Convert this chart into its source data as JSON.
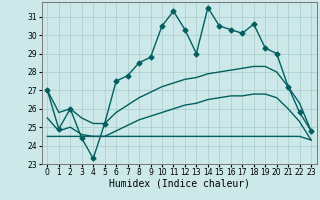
{
  "title": "",
  "xlabel": "Humidex (Indice chaleur)",
  "xlim": [
    -0.5,
    23.5
  ],
  "ylim": [
    23,
    31.8
  ],
  "yticks": [
    23,
    24,
    25,
    26,
    27,
    28,
    29,
    30,
    31
  ],
  "xticks": [
    0,
    1,
    2,
    3,
    4,
    5,
    6,
    7,
    8,
    9,
    10,
    11,
    12,
    13,
    14,
    15,
    16,
    17,
    18,
    19,
    20,
    21,
    22,
    23
  ],
  "bg_color": "#cce8e8",
  "grid_color": "#aacccc",
  "line_color": "#006060",
  "line1": [
    27.0,
    24.9,
    26.0,
    24.4,
    23.3,
    25.2,
    27.5,
    27.8,
    28.5,
    28.8,
    30.5,
    31.3,
    30.3,
    29.0,
    31.5,
    30.5,
    30.3,
    30.1,
    30.6,
    29.3,
    29.0,
    27.2,
    25.8,
    24.8
  ],
  "line2": [
    24.5,
    24.5,
    24.5,
    24.5,
    24.5,
    24.5,
    24.5,
    24.5,
    24.5,
    24.5,
    24.5,
    24.5,
    24.5,
    24.5,
    24.5,
    24.5,
    24.5,
    24.5,
    24.5,
    24.5,
    24.5,
    24.5,
    24.5,
    24.3
  ],
  "line3": [
    27.0,
    25.8,
    26.0,
    25.5,
    25.2,
    25.2,
    25.8,
    26.2,
    26.6,
    26.9,
    27.2,
    27.4,
    27.6,
    27.7,
    27.9,
    28.0,
    28.1,
    28.2,
    28.3,
    28.3,
    28.0,
    27.2,
    26.3,
    24.8
  ],
  "line4": [
    25.5,
    24.8,
    25.0,
    24.6,
    24.5,
    24.5,
    24.8,
    25.1,
    25.4,
    25.6,
    25.8,
    26.0,
    26.2,
    26.3,
    26.5,
    26.6,
    26.7,
    26.7,
    26.8,
    26.8,
    26.6,
    26.0,
    25.3,
    24.3
  ],
  "marker": "D",
  "marker_size": 2.5,
  "line_width": 1.0,
  "xlabel_fontsize": 7,
  "tick_fontsize": 5.5
}
